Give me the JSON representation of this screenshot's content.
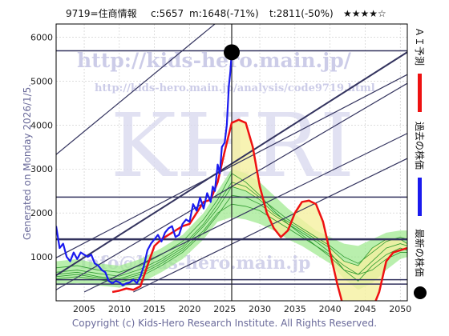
{
  "header": {
    "code_label": "9719=住商情報",
    "close_label": "c:5657",
    "mid_label": "m:1648(-71%)",
    "target_label": "t:2811(-50%)",
    "rating": "★★★★☆"
  },
  "watermark": {
    "url_main": "http://kids-hero.main.jp/",
    "url_analysis": "http://kids-hero.main.jp/analysis/code9719.html",
    "big_text": "KHRI",
    "email": "info@kids-hero.main.jp"
  },
  "generated_label": "Generated on Monday 2026/1/5.",
  "copyright": "Copyright (c) Kids-Hero Research Institute. All Rights Reserved.",
  "legend": {
    "ai_forecast": "ＡＩ予測",
    "past_price": "過去の株価",
    "latest_price": "最新の株価"
  },
  "colors": {
    "past_price": "#1a1aee",
    "ai_forecast": "#ee1111",
    "band_green": "#9be88a",
    "band_yellow": "#f5f0a0",
    "green_line": "#2e9a2e",
    "trend_line": "#33335e",
    "marker": "#000000"
  },
  "chart_data": {
    "type": "line",
    "xlim": [
      2001,
      2051
    ],
    "ylim": [
      0,
      6300
    ],
    "xticks": [
      2005,
      2010,
      2015,
      2020,
      2025,
      2030,
      2035,
      2040,
      2045,
      2050
    ],
    "yticks": [
      1000,
      2000,
      3000,
      4000,
      5000,
      6000
    ],
    "grid": true,
    "latest_point": {
      "x": 2026.0,
      "y": 5657
    },
    "horizontal_levels": [
      5690,
      2360,
      1400,
      480,
      380
    ],
    "current_date_line_x": 2026.0,
    "series": [
      {
        "kind": "past",
        "x": [
          2001.0,
          2001.5,
          2002.0,
          2002.5,
          2003.0,
          2003.5,
          2004.0,
          2004.5,
          2005.0,
          2005.5,
          2006.0,
          2006.5,
          2007.0,
          2007.5,
          2008.0,
          2008.5,
          2009.0,
          2009.5,
          2010.0,
          2010.5,
          2011.0,
          2011.5,
          2012.0,
          2012.5,
          2013.0,
          2013.5,
          2014.0,
          2014.5,
          2015.0,
          2015.5,
          2016.0,
          2016.5,
          2017.0,
          2017.5,
          2018.0,
          2018.5,
          2019.0,
          2019.5,
          2020.0,
          2020.5,
          2021.0,
          2021.5,
          2022.0,
          2022.5,
          2023.0,
          2023.3,
          2023.6,
          2024.0,
          2024.3,
          2024.6,
          2025.0,
          2025.3,
          2025.6,
          2025.8,
          2026.0
        ],
        "values": [
          1700,
          1200,
          1300,
          1000,
          900,
          1100,
          950,
          1100,
          1050,
          1000,
          1050,
          850,
          800,
          700,
          650,
          450,
          400,
          450,
          420,
          350,
          400,
          420,
          480,
          400,
          550,
          800,
          1150,
          1300,
          1400,
          1500,
          1350,
          1550,
          1650,
          1700,
          1450,
          1500,
          1750,
          1850,
          1800,
          2200,
          2050,
          2350,
          2100,
          2450,
          2250,
          2600,
          2500,
          3100,
          2900,
          3500,
          3600,
          4000,
          4900,
          5200,
          5657
        ]
      },
      {
        "kind": "ai",
        "x": [
          2009.0,
          2010.0,
          2011.0,
          2012.0,
          2013.0,
          2014.0,
          2015.0,
          2016.0,
          2017.0,
          2018.0,
          2019.0,
          2020.0,
          2021.0,
          2022.0,
          2023.0,
          2024.0,
          2025.0,
          2026.0,
          2027.0,
          2028.0,
          2029.0,
          2030.0,
          2031.0,
          2032.0,
          2033.0,
          2034.0,
          2035.0,
          2036.0,
          2037.0,
          2038.0,
          2039.0,
          2040.0,
          2041.0,
          2042.0,
          2043.0,
          2044.0,
          2045.0,
          2046.0,
          2047.0,
          2048.0,
          2049.0,
          2050.0,
          2051.0
        ],
        "values": [
          200,
          230,
          280,
          250,
          330,
          800,
          1250,
          1400,
          1500,
          1600,
          1700,
          1750,
          2000,
          2250,
          2300,
          2700,
          3400,
          4050,
          4120,
          4050,
          3500,
          2600,
          2000,
          1650,
          1450,
          1600,
          2000,
          2250,
          2280,
          2200,
          1800,
          1100,
          400,
          -200,
          -300,
          -400,
          -300,
          -200,
          200,
          900,
          1100,
          1150,
          1200
        ]
      },
      {
        "kind": "green",
        "x": [
          2001,
          2004,
          2007,
          2010,
          2013,
          2016,
          2019,
          2022,
          2024,
          2026,
          2028,
          2030,
          2032,
          2034,
          2036,
          2038,
          2040,
          2042,
          2044,
          2046,
          2048,
          2050,
          2051
        ],
        "values": [
          600,
          650,
          550,
          500,
          650,
          900,
          1200,
          1700,
          2100,
          2600,
          2500,
          2300,
          2000,
          1800,
          1600,
          1400,
          1200,
          900,
          800,
          1200,
          1400,
          1400,
          1300
        ]
      },
      {
        "kind": "green",
        "x": [
          2001,
          2004,
          2007,
          2010,
          2013,
          2016,
          2019,
          2022,
          2024,
          2026,
          2028,
          2030,
          2032,
          2034,
          2036,
          2038,
          2040,
          2042,
          2044,
          2046,
          2048,
          2050,
          2051
        ],
        "values": [
          750,
          800,
          700,
          650,
          800,
          1050,
          1350,
          1850,
          2300,
          2900,
          2700,
          2400,
          2050,
          1750,
          1500,
          1250,
          1000,
          700,
          600,
          900,
          1200,
          1300,
          1250
        ]
      },
      {
        "kind": "green",
        "x": [
          2001,
          2004,
          2007,
          2010,
          2013,
          2016,
          2019,
          2022,
          2024,
          2026,
          2028,
          2030,
          2032,
          2034,
          2036,
          2038,
          2040,
          2042,
          2044,
          2046,
          2048,
          2050,
          2051
        ],
        "values": [
          500,
          550,
          480,
          420,
          550,
          800,
          1100,
          1550,
          1950,
          2400,
          2350,
          2200,
          1950,
          1750,
          1550,
          1350,
          1100,
          700,
          450,
          800,
          1050,
          1200,
          1150
        ]
      },
      {
        "kind": "green",
        "x": [
          2001,
          2004,
          2007,
          2010,
          2013,
          2016,
          2019,
          2022,
          2024,
          2026,
          2028,
          2030,
          2032,
          2034,
          2036,
          2038,
          2040,
          2042,
          2044,
          2046,
          2048,
          2050,
          2051
        ],
        "values": [
          650,
          700,
          620,
          560,
          720,
          950,
          1250,
          1750,
          2200,
          2700,
          2600,
          2350,
          2100,
          1850,
          1650,
          1450,
          1250,
          1000,
          850,
          1100,
          1350,
          1450,
          1400
        ]
      },
      {
        "kind": "green",
        "x": [
          2001,
          2004,
          2007,
          2010,
          2013,
          2016,
          2019,
          2022,
          2024,
          2026,
          2028,
          2030,
          2032,
          2034,
          2036,
          2038,
          2040,
          2042,
          2044,
          2046,
          2048,
          2050,
          2051
        ],
        "values": [
          550,
          600,
          520,
          470,
          600,
          850,
          1150,
          1600,
          2000,
          2200,
          2150,
          2050,
          1850,
          1650,
          1450,
          1250,
          1050,
          800,
          600,
          700,
          950,
          1100,
          1100
        ]
      }
    ],
    "bands": [
      {
        "kind": "green",
        "x": [
          2001,
          2004,
          2007,
          2010,
          2013,
          2016,
          2019,
          2022,
          2024,
          2026,
          2028,
          2030,
          2032,
          2034,
          2036,
          2038,
          2040,
          2042,
          2044,
          2046,
          2048,
          2050,
          2051
        ],
        "upper": [
          900,
          950,
          850,
          800,
          950,
          1200,
          1500,
          2000,
          2500,
          3000,
          2900,
          2700,
          2400,
          2100,
          1850,
          1600,
          1450,
          1300,
          1250,
          1400,
          1550,
          1600,
          1600
        ],
        "lower": [
          350,
          400,
          350,
          300,
          400,
          650,
          950,
          1400,
          1800,
          1900,
          1850,
          1750,
          1600,
          1400,
          1250,
          1050,
          850,
          500,
          250,
          400,
          700,
          950,
          1000
        ]
      }
    ],
    "trend_lines": [
      {
        "start": {
          "x": 2001,
          "y": 3330
        },
        "end": {
          "x": 2051,
          "y": 9900
        }
      },
      {
        "start": {
          "x": 2001,
          "y": 580
        },
        "end": {
          "x": 2051,
          "y": 5660
        }
      },
      {
        "start": {
          "x": 2001,
          "y": 250
        },
        "end": {
          "x": 2051,
          "y": 4950
        }
      },
      {
        "start": {
          "x": 2005,
          "y": 200
        },
        "end": {
          "x": 2051,
          "y": 3810
        }
      },
      {
        "start": {
          "x": 2012,
          "y": 200
        },
        "end": {
          "x": 2051,
          "y": 3240
        }
      },
      {
        "start": {
          "x": 2001,
          "y": 980
        },
        "end": {
          "x": 2051,
          "y": 5150
        }
      }
    ]
  }
}
